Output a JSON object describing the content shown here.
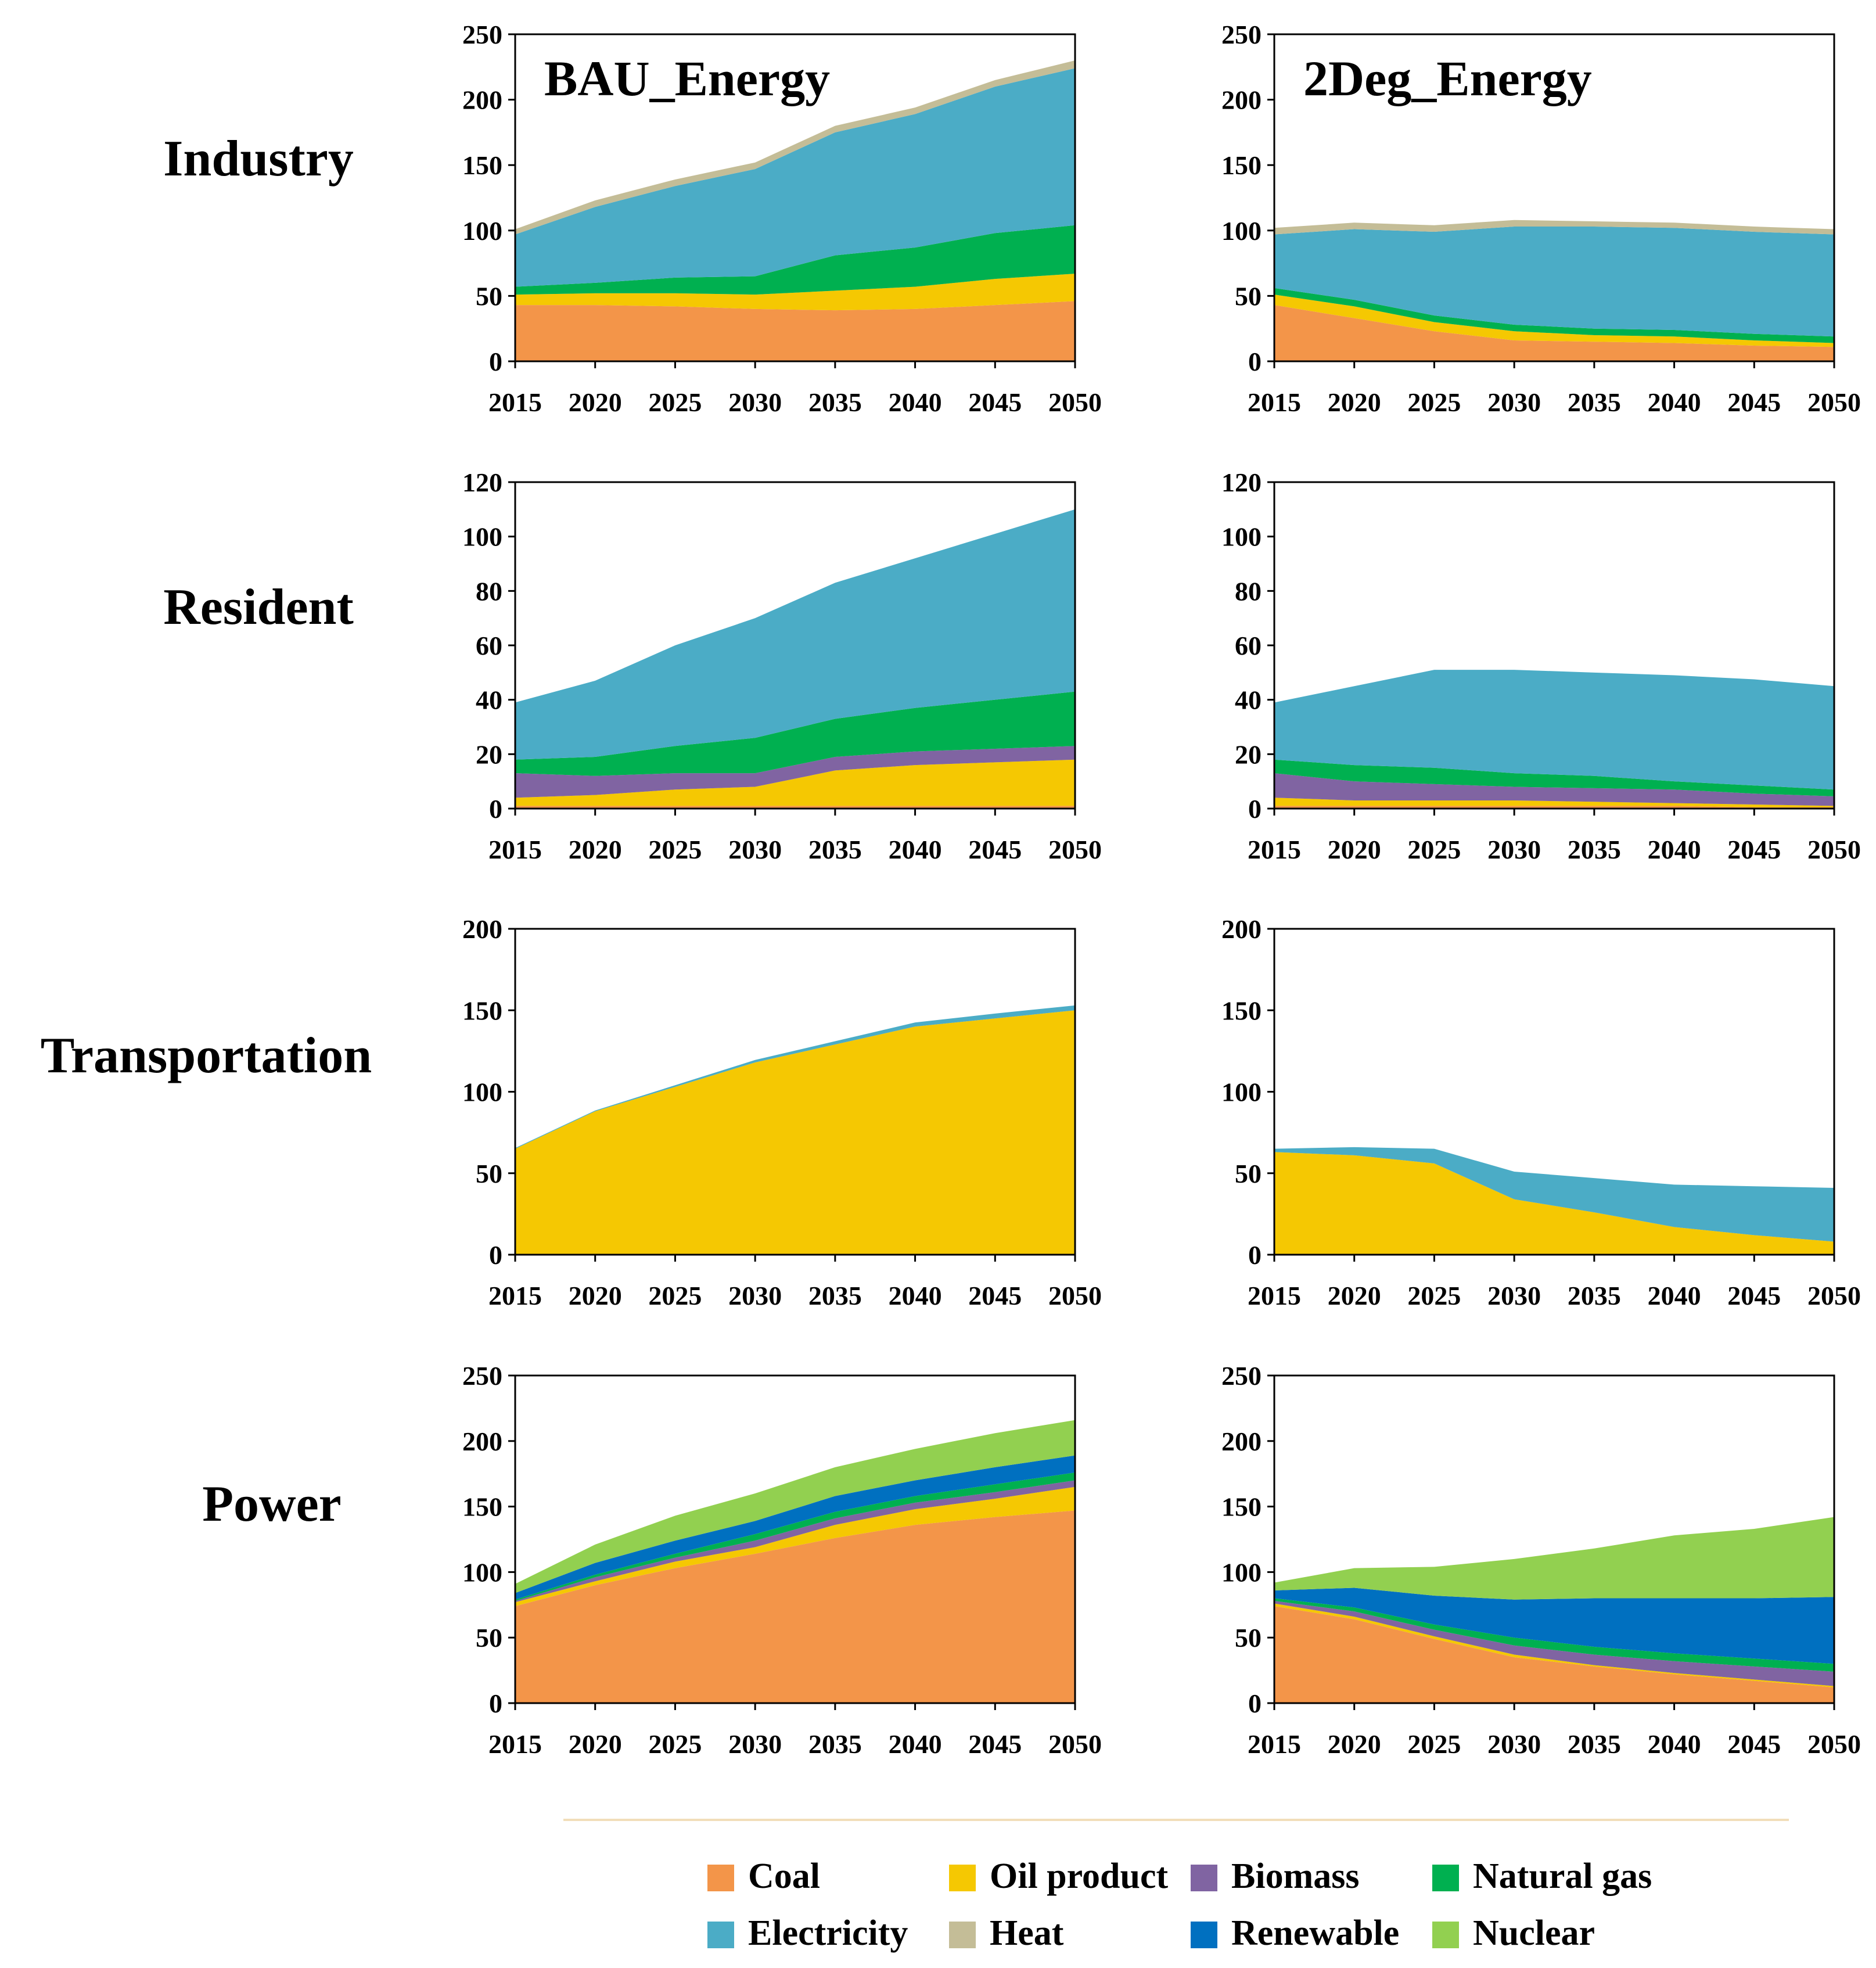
{
  "figure": {
    "rows": [
      "Industry",
      "Resident",
      "Transportation",
      "Power"
    ],
    "columns": [
      "BAU_Energy",
      "2Deg_Energy"
    ]
  },
  "colors": {
    "Coal": "#F39549",
    "Oil product": "#F5C802",
    "Biomass": "#8064A2",
    "Natural gas": "#00B050",
    "Electricity": "#4BACC6",
    "Heat": "#C4BD97",
    "Renewable": "#0070C0",
    "Nuclear": "#92D050"
  },
  "legend": [
    [
      "Coal",
      "Oil product",
      "Biomass",
      "Natural gas"
    ],
    [
      "Electricity",
      "Heat",
      "Renewable",
      "Nuclear"
    ]
  ],
  "chart_data": [
    {
      "type": "area",
      "stacked": true,
      "row": "Industry",
      "scenario": "BAU_Energy",
      "title": "BAU_Energy",
      "x": [
        2015,
        2020,
        2025,
        2030,
        2035,
        2040,
        2045,
        2050
      ],
      "ylim": [
        0,
        250
      ],
      "yticks": [
        0,
        50,
        100,
        150,
        200,
        250
      ],
      "series": [
        {
          "name": "Coal",
          "values": [
            43,
            43,
            42,
            40,
            39,
            40,
            43,
            46
          ]
        },
        {
          "name": "Oil product",
          "values": [
            8,
            9,
            10,
            11,
            15,
            17,
            20,
            21
          ]
        },
        {
          "name": "Natural gas",
          "values": [
            6,
            8,
            12,
            14,
            27,
            30,
            35,
            37
          ]
        },
        {
          "name": "Electricity",
          "values": [
            40,
            58,
            70,
            82,
            94,
            102,
            112,
            120
          ]
        },
        {
          "name": "Heat",
          "values": [
            4,
            5,
            5,
            5,
            5,
            5,
            5,
            6
          ]
        }
      ]
    },
    {
      "type": "area",
      "stacked": true,
      "row": "Industry",
      "scenario": "2Deg_Energy",
      "title": "2Deg_Energy",
      "x": [
        2015,
        2020,
        2025,
        2030,
        2035,
        2040,
        2045,
        2050
      ],
      "ylim": [
        0,
        250
      ],
      "yticks": [
        0,
        50,
        100,
        150,
        200,
        250
      ],
      "series": [
        {
          "name": "Coal",
          "values": [
            43,
            33,
            23,
            16,
            15,
            14,
            12,
            11
          ]
        },
        {
          "name": "Oil product",
          "values": [
            8,
            9,
            7,
            7,
            5,
            5,
            4,
            3
          ]
        },
        {
          "name": "Natural gas",
          "values": [
            5,
            5,
            5,
            5,
            5,
            5,
            5,
            5
          ]
        },
        {
          "name": "Electricity",
          "values": [
            41,
            54,
            64,
            75,
            78,
            78,
            78,
            78
          ]
        },
        {
          "name": "Heat",
          "values": [
            5,
            5,
            5,
            5,
            4,
            4,
            4,
            4
          ]
        }
      ]
    },
    {
      "type": "area",
      "stacked": true,
      "row": "Resident",
      "scenario": "BAU_Energy",
      "x": [
        2015,
        2020,
        2025,
        2030,
        2035,
        2040,
        2045,
        2050
      ],
      "ylim": [
        0,
        120
      ],
      "yticks": [
        0,
        20,
        40,
        60,
        80,
        100,
        120
      ],
      "series": [
        {
          "name": "Coal",
          "values": [
            1,
            1,
            1,
            1,
            1,
            1,
            1,
            1
          ]
        },
        {
          "name": "Oil product",
          "values": [
            3,
            4,
            6,
            7,
            13,
            15,
            16,
            17
          ]
        },
        {
          "name": "Biomass",
          "values": [
            9,
            7,
            6,
            5,
            5,
            5,
            5,
            5
          ]
        },
        {
          "name": "Natural gas",
          "values": [
            5,
            7,
            10,
            13,
            14,
            16,
            18,
            20
          ]
        },
        {
          "name": "Electricity",
          "values": [
            21,
            28,
            37,
            44,
            50,
            55,
            61,
            67
          ]
        }
      ]
    },
    {
      "type": "area",
      "stacked": true,
      "row": "Resident",
      "scenario": "2Deg_Energy",
      "x": [
        2015,
        2020,
        2025,
        2030,
        2035,
        2040,
        2045,
        2050
      ],
      "ylim": [
        0,
        120
      ],
      "yticks": [
        0,
        20,
        40,
        60,
        80,
        100,
        120
      ],
      "series": [
        {
          "name": "Coal",
          "values": [
            1,
            1,
            1,
            1,
            1,
            1,
            0.5,
            0.5
          ]
        },
        {
          "name": "Oil product",
          "values": [
            3,
            2,
            2,
            2,
            1.5,
            1,
            1,
            0.5
          ]
        },
        {
          "name": "Biomass",
          "values": [
            9,
            7,
            6,
            5,
            5,
            5,
            4,
            3.5
          ]
        },
        {
          "name": "Natural gas",
          "values": [
            5,
            6,
            6,
            5,
            4.5,
            3,
            3,
            2.5
          ]
        },
        {
          "name": "Electricity",
          "values": [
            21,
            29,
            36,
            38,
            38,
            39,
            39,
            38
          ]
        }
      ]
    },
    {
      "type": "area",
      "stacked": true,
      "row": "Transportation",
      "scenario": "BAU_Energy",
      "x": [
        2015,
        2020,
        2025,
        2030,
        2035,
        2040,
        2045,
        2050
      ],
      "ylim": [
        0,
        200
      ],
      "yticks": [
        0,
        50,
        100,
        150,
        200
      ],
      "series": [
        {
          "name": "Oil product",
          "values": [
            65,
            88,
            103,
            118,
            129,
            140,
            145,
            150
          ]
        },
        {
          "name": "Electricity",
          "values": [
            0.5,
            0.5,
            1,
            1.5,
            2,
            2.5,
            3,
            3
          ]
        }
      ]
    },
    {
      "type": "area",
      "stacked": true,
      "row": "Transportation",
      "scenario": "2Deg_Energy",
      "x": [
        2015,
        2020,
        2025,
        2030,
        2035,
        2040,
        2045,
        2050
      ],
      "ylim": [
        0,
        200
      ],
      "yticks": [
        0,
        50,
        100,
        150,
        200
      ],
      "series": [
        {
          "name": "Oil product",
          "values": [
            63,
            61,
            56,
            34,
            26,
            17,
            12,
            8
          ]
        },
        {
          "name": "Electricity",
          "values": [
            2,
            5,
            9,
            17,
            21,
            26,
            30,
            33
          ]
        }
      ]
    },
    {
      "type": "area",
      "stacked": true,
      "row": "Power",
      "scenario": "BAU_Energy",
      "x": [
        2015,
        2020,
        2025,
        2030,
        2035,
        2040,
        2045,
        2050
      ],
      "ylim": [
        0,
        250
      ],
      "yticks": [
        0,
        50,
        100,
        150,
        200,
        250
      ],
      "series": [
        {
          "name": "Coal",
          "values": [
            74,
            90,
            103,
            114,
            126,
            136,
            142,
            147
          ]
        },
        {
          "name": "Oil product",
          "values": [
            3,
            3,
            5,
            5,
            10,
            12,
            14,
            18
          ]
        },
        {
          "name": "Biomass",
          "values": [
            1,
            3,
            3,
            5,
            5,
            5,
            5,
            5
          ]
        },
        {
          "name": "Natural gas",
          "values": [
            1,
            2,
            3,
            5,
            5,
            5,
            6,
            6
          ]
        },
        {
          "name": "Renewable",
          "values": [
            5,
            9,
            10,
            10,
            12,
            12,
            13,
            13
          ]
        },
        {
          "name": "Nuclear",
          "values": [
            7,
            14,
            19,
            21,
            22,
            24,
            26,
            27
          ]
        }
      ]
    },
    {
      "type": "area",
      "stacked": true,
      "row": "Power",
      "scenario": "2Deg_Energy",
      "x": [
        2015,
        2020,
        2025,
        2030,
        2035,
        2040,
        2045,
        2050
      ],
      "ylim": [
        0,
        250
      ],
      "yticks": [
        0,
        50,
        100,
        150,
        200,
        250
      ],
      "series": [
        {
          "name": "Coal",
          "values": [
            74,
            64,
            49,
            35,
            28,
            22,
            17,
            12
          ]
        },
        {
          "name": "Oil product",
          "values": [
            2,
            2,
            2,
            2,
            1,
            1,
            1,
            1
          ]
        },
        {
          "name": "Biomass",
          "values": [
            2,
            4,
            5,
            7,
            8,
            9,
            10,
            11
          ]
        },
        {
          "name": "Natural gas",
          "values": [
            2,
            3,
            4,
            6,
            6,
            6,
            6,
            6
          ]
        },
        {
          "name": "Renewable",
          "values": [
            6,
            15,
            22,
            29,
            37,
            42,
            46,
            51
          ]
        },
        {
          "name": "Nuclear",
          "values": [
            6,
            15,
            22,
            31,
            38,
            48,
            53,
            61
          ]
        }
      ]
    }
  ]
}
